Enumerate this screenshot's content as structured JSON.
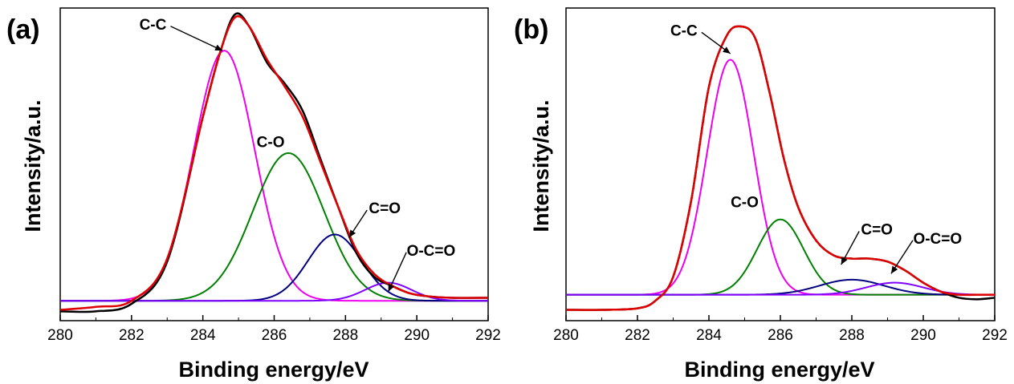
{
  "chart_data": [
    {
      "type": "line",
      "panel_label": "(a)",
      "xlabel": "Binding energy/eV",
      "ylabel": "Intensity/a.u.",
      "xlim": [
        280,
        292
      ],
      "ylim": [
        0,
        100
      ],
      "xticks": [
        280,
        282,
        284,
        286,
        288,
        290,
        292
      ],
      "xtick_labels": [
        "280",
        "282",
        "284",
        "286",
        "288",
        "290",
        "292"
      ],
      "background": 5,
      "series": [
        {
          "color": "#000000",
          "width": 2.5,
          "x": [
            280,
            281,
            282,
            283,
            284,
            284.5,
            284.9,
            285.3,
            285.8,
            286.3,
            286.8,
            287.3,
            287.8,
            288.3,
            288.8,
            289.3,
            289.8,
            290.3,
            291,
            292
          ],
          "y": [
            1.5,
            1.5,
            4,
            18,
            66,
            88,
            100,
            96,
            84,
            77,
            68,
            52,
            36,
            21,
            13,
            10,
            7.5,
            6.5,
            6,
            6
          ]
        },
        {
          "color": "#e00000",
          "width": 2.5,
          "x": [
            280,
            281,
            282,
            283,
            284,
            284.5,
            284.9,
            285.3,
            285.8,
            286.3,
            286.8,
            287.3,
            287.8,
            288.3,
            288.8,
            289.3,
            289.8,
            290.3,
            291,
            292
          ],
          "y": [
            2,
            3,
            5,
            19,
            66,
            88,
            99,
            96,
            85,
            76,
            66,
            51,
            36,
            22,
            14,
            10,
            7.5,
            6.5,
            6,
            6
          ]
        },
        {
          "color": "#ee00ee",
          "width": 2,
          "center": 284.6,
          "amp": 83,
          "sigma": 0.85
        },
        {
          "color": "#008000",
          "width": 2,
          "center": 286.4,
          "amp": 49,
          "sigma": 1.0
        },
        {
          "color": "#000080",
          "width": 2,
          "center": 287.7,
          "amp": 22,
          "sigma": 0.75
        },
        {
          "color": "#8000ff",
          "width": 2,
          "center": 289.2,
          "amp": 6,
          "sigma": 0.65
        }
      ],
      "annotations": [
        {
          "text": "C-C",
          "x": 282.6,
          "y": 95,
          "ax": 284.55,
          "ay": 88
        },
        {
          "text": "C-O",
          "x": 285.9,
          "y": 56
        },
        {
          "text": "C=O",
          "x": 289.1,
          "y": 34,
          "ax": 288.1,
          "ay": 26
        },
        {
          "text": "O-C=O",
          "x": 290.4,
          "y": 20,
          "ax": 289.2,
          "ay": 8
        }
      ]
    },
    {
      "type": "line",
      "panel_label": "(b)",
      "xlabel": "Binding energy/eV",
      "ylabel": "Intensity/a.u.",
      "xlim": [
        280,
        292
      ],
      "ylim": [
        0,
        100
      ],
      "xticks": [
        280,
        282,
        284,
        286,
        288,
        290,
        292
      ],
      "xtick_labels": [
        "280",
        "282",
        "284",
        "286",
        "288",
        "290",
        "292"
      ],
      "background": 7,
      "series": [
        {
          "color": "#000000",
          "width": 2.5,
          "x": [
            280,
            281,
            282,
            282.5,
            283,
            283.5,
            284,
            284.5,
            284.9,
            285.3,
            285.7,
            286.1,
            286.5,
            287,
            287.5,
            288,
            288.5,
            289,
            289.5,
            290,
            290.5,
            291,
            291.5,
            292
          ],
          "y": [
            2,
            2,
            2.5,
            5,
            13,
            38,
            76,
            93,
            96,
            92,
            74,
            52,
            36,
            25,
            20,
            19,
            19,
            18,
            15,
            11,
            8,
            6,
            5.5,
            6
          ]
        },
        {
          "color": "#e00000",
          "width": 2.5,
          "x": [
            280,
            281,
            282,
            282.5,
            283,
            283.5,
            284,
            284.5,
            284.9,
            285.3,
            285.7,
            286.1,
            286.5,
            287,
            287.5,
            288,
            288.5,
            289,
            289.5,
            290,
            290.5,
            291,
            291.5,
            292
          ],
          "y": [
            2,
            2,
            2.5,
            5,
            13,
            38,
            76,
            93,
            96,
            92,
            74,
            52,
            36,
            25,
            20,
            19,
            19,
            18,
            15,
            11,
            8,
            7,
            7,
            7
          ]
        },
        {
          "color": "#ee00ee",
          "width": 2,
          "center": 284.6,
          "amp": 78,
          "sigma": 0.65
        },
        {
          "color": "#008000",
          "width": 2,
          "center": 286.0,
          "amp": 25,
          "sigma": 0.65
        },
        {
          "color": "#000080",
          "width": 2,
          "center": 288.0,
          "amp": 5,
          "sigma": 0.9
        },
        {
          "color": "#8000ff",
          "width": 2,
          "center": 289.2,
          "amp": 4,
          "sigma": 0.8
        }
      ],
      "annotations": [
        {
          "text": "C-C",
          "x": 283.3,
          "y": 93,
          "ax": 284.6,
          "ay": 87
        },
        {
          "text": "C-O",
          "x": 285.0,
          "y": 36
        },
        {
          "text": "C=O",
          "x": 288.7,
          "y": 27,
          "ax": 287.7,
          "ay": 17
        },
        {
          "text": "O-C=O",
          "x": 290.4,
          "y": 24,
          "ax": 289.1,
          "ay": 14
        }
      ]
    }
  ]
}
